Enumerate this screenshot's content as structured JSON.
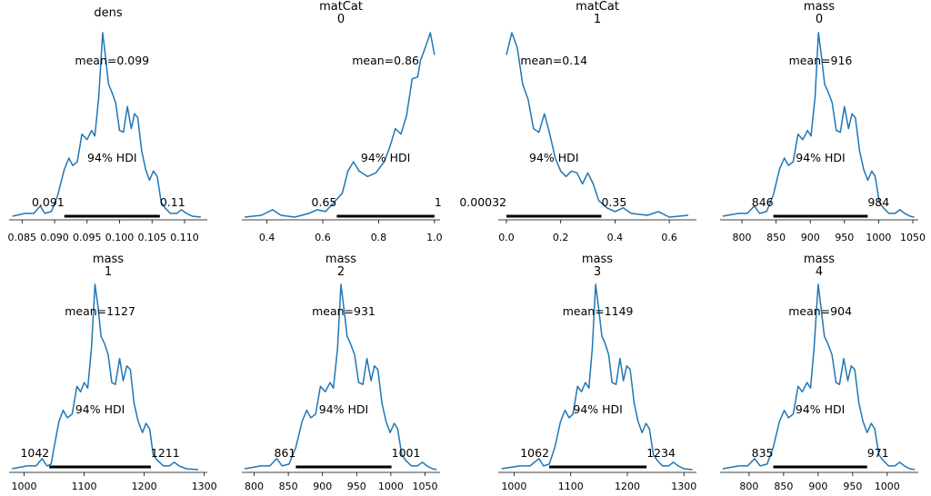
{
  "style": {
    "curve_color": "#1f77b4",
    "hdi_color": "#000000",
    "axis_color": "#000000"
  },
  "chart_data": [
    {
      "type": "area",
      "title": [
        "dens"
      ],
      "mean_label": "mean=0.099",
      "hdi_label": "94% HDI",
      "hdi": {
        "low": 0.0915,
        "high": 0.1062,
        "low_label": "0.091",
        "high_label": "0.11"
      },
      "xlim": [
        0.083,
        0.1135
      ],
      "xticks": [
        0.085,
        0.09,
        0.095,
        0.1,
        0.105,
        0.11
      ],
      "xtick_labels": [
        "0.085",
        "0.090",
        "0.095",
        "0.100",
        "0.105",
        "0.110"
      ],
      "density": [
        [
          0.0835,
          0.005
        ],
        [
          0.0855,
          0.02
        ],
        [
          0.0868,
          0.02
        ],
        [
          0.0878,
          0.06
        ],
        [
          0.0885,
          0.02
        ],
        [
          0.0895,
          0.03
        ],
        [
          0.0905,
          0.12
        ],
        [
          0.0915,
          0.26
        ],
        [
          0.0922,
          0.32
        ],
        [
          0.0928,
          0.28
        ],
        [
          0.0935,
          0.3
        ],
        [
          0.0942,
          0.45
        ],
        [
          0.095,
          0.42
        ],
        [
          0.0957,
          0.47
        ],
        [
          0.0962,
          0.44
        ],
        [
          0.0968,
          0.65
        ],
        [
          0.0974,
          1.0
        ],
        [
          0.0978,
          0.88
        ],
        [
          0.0983,
          0.72
        ],
        [
          0.0988,
          0.68
        ],
        [
          0.0994,
          0.62
        ],
        [
          0.1,
          0.47
        ],
        [
          0.1006,
          0.46
        ],
        [
          0.1012,
          0.6
        ],
        [
          0.1018,
          0.48
        ],
        [
          0.1023,
          0.56
        ],
        [
          0.1028,
          0.54
        ],
        [
          0.1034,
          0.36
        ],
        [
          0.104,
          0.26
        ],
        [
          0.1046,
          0.2
        ],
        [
          0.1052,
          0.25
        ],
        [
          0.1058,
          0.22
        ],
        [
          0.1064,
          0.08
        ],
        [
          0.107,
          0.05
        ],
        [
          0.1078,
          0.02
        ],
        [
          0.1088,
          0.02
        ],
        [
          0.1095,
          0.04
        ],
        [
          0.1103,
          0.02
        ],
        [
          0.1112,
          0.005
        ],
        [
          0.1125,
          0.0
        ]
      ]
    },
    {
      "type": "area",
      "title": [
        "matCat",
        "0"
      ],
      "mean_label": "mean=0.86",
      "hdi_label": "94% HDI",
      "hdi": {
        "low": 0.65,
        "high": 1.0,
        "low_label": "0.65",
        "high_label": "1"
      },
      "xlim": [
        0.31,
        1.02
      ],
      "xticks": [
        0.4,
        0.6,
        0.8,
        1.0
      ],
      "xtick_labels": [
        "0.4",
        "0.6",
        "0.8",
        "1.0"
      ],
      "density": [
        [
          0.32,
          0.0
        ],
        [
          0.38,
          0.01
        ],
        [
          0.42,
          0.04
        ],
        [
          0.45,
          0.01
        ],
        [
          0.5,
          0.0
        ],
        [
          0.55,
          0.02
        ],
        [
          0.58,
          0.04
        ],
        [
          0.61,
          0.03
        ],
        [
          0.64,
          0.08
        ],
        [
          0.67,
          0.13
        ],
        [
          0.69,
          0.25
        ],
        [
          0.71,
          0.3
        ],
        [
          0.73,
          0.25
        ],
        [
          0.76,
          0.22
        ],
        [
          0.79,
          0.24
        ],
        [
          0.82,
          0.3
        ],
        [
          0.84,
          0.38
        ],
        [
          0.86,
          0.48
        ],
        [
          0.88,
          0.45
        ],
        [
          0.9,
          0.55
        ],
        [
          0.92,
          0.75
        ],
        [
          0.94,
          0.76
        ],
        [
          0.95,
          0.85
        ],
        [
          0.97,
          0.93
        ],
        [
          0.985,
          1.0
        ],
        [
          1.0,
          0.88
        ]
      ]
    },
    {
      "type": "area",
      "title": [
        "matCat",
        "1"
      ],
      "mean_label": "mean=0.14",
      "hdi_label": "94% HDI",
      "hdi": {
        "low": 0.00032,
        "high": 0.35,
        "low_label": "0.00032",
        "high_label": "0.35"
      },
      "xlim": [
        -0.03,
        0.7
      ],
      "xticks": [
        0.0,
        0.2,
        0.4,
        0.6
      ],
      "xtick_labels": [
        "0.0",
        "0.2",
        "0.4",
        "0.6"
      ],
      "density": [
        [
          0.0,
          0.88
        ],
        [
          0.02,
          1.0
        ],
        [
          0.04,
          0.92
        ],
        [
          0.06,
          0.72
        ],
        [
          0.08,
          0.64
        ],
        [
          0.1,
          0.48
        ],
        [
          0.12,
          0.46
        ],
        [
          0.14,
          0.56
        ],
        [
          0.16,
          0.45
        ],
        [
          0.18,
          0.32
        ],
        [
          0.2,
          0.25
        ],
        [
          0.22,
          0.22
        ],
        [
          0.24,
          0.25
        ],
        [
          0.26,
          0.24
        ],
        [
          0.28,
          0.18
        ],
        [
          0.3,
          0.24
        ],
        [
          0.32,
          0.18
        ],
        [
          0.34,
          0.09
        ],
        [
          0.37,
          0.05
        ],
        [
          0.4,
          0.03
        ],
        [
          0.43,
          0.05
        ],
        [
          0.46,
          0.02
        ],
        [
          0.52,
          0.01
        ],
        [
          0.56,
          0.03
        ],
        [
          0.6,
          0.0
        ],
        [
          0.67,
          0.01
        ]
      ]
    },
    {
      "type": "area",
      "title": [
        "mass",
        "0"
      ],
      "mean_label": "mean=916",
      "hdi_label": "94% HDI",
      "hdi": {
        "low": 846,
        "high": 984,
        "low_label": "846",
        "high_label": "984"
      },
      "xlim": [
        768,
        1058
      ],
      "xticks": [
        800,
        850,
        900,
        950,
        1000,
        1050
      ],
      "xtick_labels": [
        "800",
        "850",
        "900",
        "950",
        "1000",
        "1050"
      ],
      "density": [
        [
          772,
          0.005
        ],
        [
          795,
          0.02
        ],
        [
          808,
          0.02
        ],
        [
          818,
          0.06
        ],
        [
          826,
          0.02
        ],
        [
          836,
          0.03
        ],
        [
          846,
          0.12
        ],
        [
          855,
          0.26
        ],
        [
          862,
          0.32
        ],
        [
          868,
          0.28
        ],
        [
          875,
          0.3
        ],
        [
          882,
          0.45
        ],
        [
          889,
          0.42
        ],
        [
          896,
          0.47
        ],
        [
          901,
          0.44
        ],
        [
          907,
          0.65
        ],
        [
          912,
          1.0
        ],
        [
          916,
          0.88
        ],
        [
          921,
          0.72
        ],
        [
          926,
          0.68
        ],
        [
          932,
          0.62
        ],
        [
          938,
          0.47
        ],
        [
          944,
          0.46
        ],
        [
          950,
          0.6
        ],
        [
          956,
          0.48
        ],
        [
          961,
          0.56
        ],
        [
          966,
          0.54
        ],
        [
          972,
          0.36
        ],
        [
          978,
          0.26
        ],
        [
          984,
          0.2
        ],
        [
          990,
          0.25
        ],
        [
          995,
          0.22
        ],
        [
          1001,
          0.08
        ],
        [
          1007,
          0.05
        ],
        [
          1015,
          0.02
        ],
        [
          1024,
          0.02
        ],
        [
          1031,
          0.04
        ],
        [
          1038,
          0.02
        ],
        [
          1046,
          0.005
        ],
        [
          1052,
          0.0
        ]
      ]
    },
    {
      "type": "area",
      "title": [
        "mass",
        "1"
      ],
      "mean_label": "mean=1127",
      "hdi_label": "94% HDI",
      "hdi": {
        "low": 1042,
        "high": 1211,
        "low_label": "1042",
        "high_label": "1211"
      },
      "xlim": [
        975,
        1305
      ],
      "xticks": [
        1000,
        1100,
        1200,
        1300
      ],
      "xtick_labels": [
        "1000",
        "1100",
        "1200",
        "1300"
      ],
      "density": [
        [
          980,
          0.005
        ],
        [
          1005,
          0.02
        ],
        [
          1020,
          0.02
        ],
        [
          1030,
          0.06
        ],
        [
          1038,
          0.02
        ],
        [
          1045,
          0.03
        ],
        [
          1050,
          0.12
        ],
        [
          1058,
          0.26
        ],
        [
          1065,
          0.32
        ],
        [
          1072,
          0.28
        ],
        [
          1080,
          0.3
        ],
        [
          1088,
          0.45
        ],
        [
          1094,
          0.42
        ],
        [
          1100,
          0.47
        ],
        [
          1106,
          0.44
        ],
        [
          1112,
          0.65
        ],
        [
          1118,
          1.0
        ],
        [
          1123,
          0.88
        ],
        [
          1128,
          0.72
        ],
        [
          1134,
          0.68
        ],
        [
          1140,
          0.62
        ],
        [
          1146,
          0.47
        ],
        [
          1152,
          0.46
        ],
        [
          1159,
          0.6
        ],
        [
          1165,
          0.48
        ],
        [
          1171,
          0.56
        ],
        [
          1177,
          0.54
        ],
        [
          1183,
          0.36
        ],
        [
          1190,
          0.26
        ],
        [
          1197,
          0.2
        ],
        [
          1203,
          0.25
        ],
        [
          1209,
          0.22
        ],
        [
          1215,
          0.08
        ],
        [
          1222,
          0.05
        ],
        [
          1232,
          0.02
        ],
        [
          1242,
          0.02
        ],
        [
          1250,
          0.04
        ],
        [
          1258,
          0.02
        ],
        [
          1270,
          0.005
        ],
        [
          1290,
          0.0
        ]
      ]
    },
    {
      "type": "area",
      "title": [
        "mass",
        "2"
      ],
      "mean_label": "mean=931",
      "hdi_label": "94% HDI",
      "hdi": {
        "low": 861,
        "high": 1001,
        "low_label": "861",
        "high_label": "1001"
      },
      "xlim": [
        782,
        1072
      ],
      "xticks": [
        800,
        850,
        900,
        950,
        1000,
        1050
      ],
      "xtick_labels": [
        "800",
        "850",
        "900",
        "950",
        "1000",
        "1050"
      ],
      "density": [
        [
          786,
          0.005
        ],
        [
          810,
          0.02
        ],
        [
          823,
          0.02
        ],
        [
          833,
          0.06
        ],
        [
          841,
          0.02
        ],
        [
          851,
          0.03
        ],
        [
          861,
          0.12
        ],
        [
          870,
          0.26
        ],
        [
          877,
          0.32
        ],
        [
          883,
          0.28
        ],
        [
          890,
          0.3
        ],
        [
          897,
          0.45
        ],
        [
          904,
          0.42
        ],
        [
          911,
          0.47
        ],
        [
          916,
          0.44
        ],
        [
          922,
          0.65
        ],
        [
          927,
          1.0
        ],
        [
          931,
          0.88
        ],
        [
          936,
          0.72
        ],
        [
          941,
          0.68
        ],
        [
          947,
          0.62
        ],
        [
          953,
          0.47
        ],
        [
          959,
          0.46
        ],
        [
          965,
          0.6
        ],
        [
          971,
          0.48
        ],
        [
          976,
          0.56
        ],
        [
          981,
          0.54
        ],
        [
          987,
          0.36
        ],
        [
          993,
          0.26
        ],
        [
          999,
          0.2
        ],
        [
          1005,
          0.25
        ],
        [
          1010,
          0.22
        ],
        [
          1016,
          0.08
        ],
        [
          1022,
          0.05
        ],
        [
          1030,
          0.02
        ],
        [
          1039,
          0.02
        ],
        [
          1046,
          0.04
        ],
        [
          1053,
          0.02
        ],
        [
          1061,
          0.005
        ],
        [
          1067,
          0.0
        ]
      ]
    },
    {
      "type": "area",
      "title": [
        "mass",
        "3"
      ],
      "mean_label": "mean=1149",
      "hdi_label": "94% HDI",
      "hdi": {
        "low": 1062,
        "high": 1234,
        "low_label": "1062",
        "high_label": "1234"
      },
      "xlim": [
        972,
        1322
      ],
      "xticks": [
        1000,
        1100,
        1200,
        1300
      ],
      "xtick_labels": [
        "1000",
        "1100",
        "1200",
        "1300"
      ],
      "density": [
        [
          978,
          0.005
        ],
        [
          1010,
          0.02
        ],
        [
          1028,
          0.02
        ],
        [
          1044,
          0.06
        ],
        [
          1052,
          0.02
        ],
        [
          1062,
          0.03
        ],
        [
          1072,
          0.12
        ],
        [
          1082,
          0.26
        ],
        [
          1090,
          0.32
        ],
        [
          1097,
          0.28
        ],
        [
          1104,
          0.3
        ],
        [
          1112,
          0.45
        ],
        [
          1119,
          0.42
        ],
        [
          1126,
          0.47
        ],
        [
          1132,
          0.44
        ],
        [
          1138,
          0.65
        ],
        [
          1144,
          1.0
        ],
        [
          1149,
          0.88
        ],
        [
          1155,
          0.72
        ],
        [
          1161,
          0.68
        ],
        [
          1167,
          0.62
        ],
        [
          1173,
          0.47
        ],
        [
          1180,
          0.46
        ],
        [
          1187,
          0.6
        ],
        [
          1193,
          0.48
        ],
        [
          1199,
          0.56
        ],
        [
          1205,
          0.54
        ],
        [
          1212,
          0.36
        ],
        [
          1219,
          0.26
        ],
        [
          1226,
          0.2
        ],
        [
          1233,
          0.25
        ],
        [
          1239,
          0.22
        ],
        [
          1246,
          0.08
        ],
        [
          1253,
          0.05
        ],
        [
          1262,
          0.02
        ],
        [
          1273,
          0.02
        ],
        [
          1281,
          0.04
        ],
        [
          1290,
          0.02
        ],
        [
          1300,
          0.005
        ],
        [
          1315,
          0.0
        ]
      ]
    },
    {
      "type": "area",
      "title": [
        "mass",
        "4"
      ],
      "mean_label": "mean=904",
      "hdi_label": "94% HDI",
      "hdi": {
        "low": 835,
        "high": 971,
        "low_label": "835",
        "high_label": "971"
      },
      "xlim": [
        758,
        1045
      ],
      "xticks": [
        800,
        850,
        900,
        950,
        1000
      ],
      "xtick_labels": [
        "800",
        "850",
        "900",
        "950",
        "1000"
      ],
      "density": [
        [
          762,
          0.005
        ],
        [
          785,
          0.02
        ],
        [
          798,
          0.02
        ],
        [
          808,
          0.06
        ],
        [
          816,
          0.02
        ],
        [
          826,
          0.03
        ],
        [
          835,
          0.12
        ],
        [
          844,
          0.26
        ],
        [
          851,
          0.32
        ],
        [
          857,
          0.28
        ],
        [
          864,
          0.3
        ],
        [
          871,
          0.45
        ],
        [
          877,
          0.42
        ],
        [
          884,
          0.47
        ],
        [
          889,
          0.44
        ],
        [
          894,
          0.65
        ],
        [
          900,
          1.0
        ],
        [
          904,
          0.88
        ],
        [
          909,
          0.72
        ],
        [
          914,
          0.68
        ],
        [
          920,
          0.62
        ],
        [
          926,
          0.47
        ],
        [
          931,
          0.46
        ],
        [
          937,
          0.6
        ],
        [
          943,
          0.48
        ],
        [
          948,
          0.56
        ],
        [
          953,
          0.54
        ],
        [
          959,
          0.36
        ],
        [
          965,
          0.26
        ],
        [
          971,
          0.2
        ],
        [
          977,
          0.25
        ],
        [
          982,
          0.22
        ],
        [
          988,
          0.08
        ],
        [
          994,
          0.05
        ],
        [
          1002,
          0.02
        ],
        [
          1011,
          0.02
        ],
        [
          1018,
          0.04
        ],
        [
          1025,
          0.02
        ],
        [
          1033,
          0.005
        ],
        [
          1040,
          0.0
        ]
      ]
    }
  ]
}
